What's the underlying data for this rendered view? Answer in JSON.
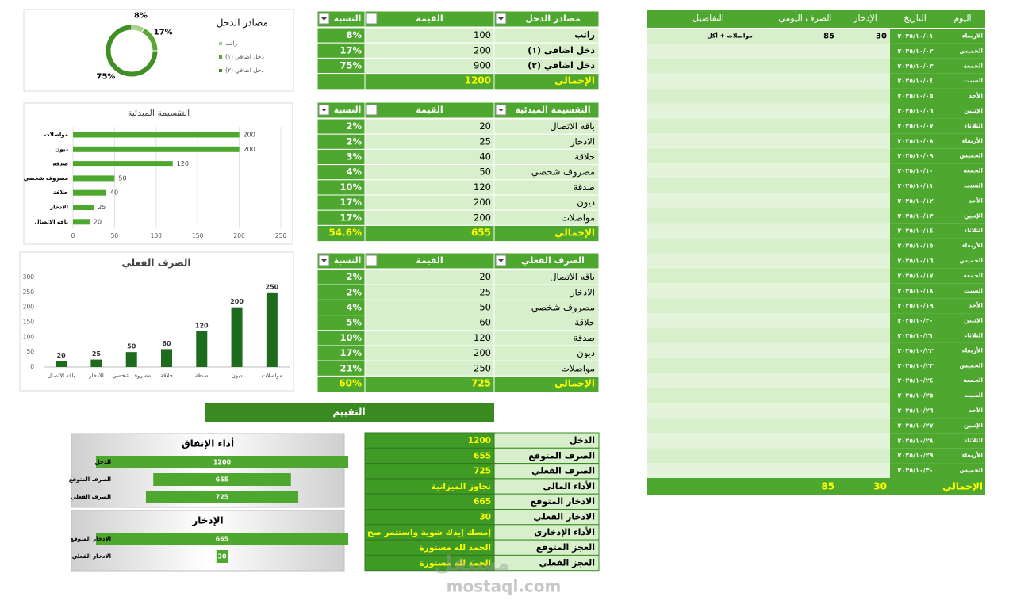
{
  "chart_data": [
    {
      "type": "donut",
      "title": "مصادر الدخل",
      "categories": [
        "راتب",
        "دخل اضافي (١)",
        "دخل اضافي (٢)"
      ],
      "values": [
        8,
        17,
        75
      ],
      "value_labels": [
        "8%",
        "17%",
        "75%"
      ],
      "colors": [
        "#a9d18e",
        "#5aa832",
        "#3f8f25"
      ],
      "legend": "right"
    },
    {
      "type": "hbar",
      "title": "التقسيمة المبدئية",
      "categories": [
        "مواصلات",
        "ديون",
        "صدقة",
        "مصروف شخصي",
        "حلاقة",
        "الادخار",
        "باقه الاتصال"
      ],
      "values": [
        200,
        200,
        120,
        50,
        40,
        25,
        20
      ],
      "color": "#4ea72e",
      "xlim": [
        0,
        250
      ],
      "xticks": [
        0,
        50,
        100,
        150,
        200,
        250
      ],
      "grid": true
    },
    {
      "type": "bar",
      "title": "الصرف الفعلي",
      "categories": [
        "باقه الاتصال",
        "الادخار",
        "مصروف شخصي",
        "حلاقة",
        "صدقة",
        "ديون",
        "مواصلات"
      ],
      "values": [
        20,
        25,
        50,
        60,
        120,
        200,
        250
      ],
      "color": "#1e6b1e",
      "ylim": [
        0,
        300
      ],
      "yticks": [
        0,
        50,
        100,
        150,
        200,
        250,
        300
      ],
      "grid": false
    },
    {
      "type": "funnel",
      "title": "أداء الإنفاق",
      "categories": [
        "الدخل",
        "الصرف المتوقع",
        "الصرف الفعلي"
      ],
      "values": [
        1200,
        655,
        725
      ],
      "color": "#4ea72e"
    },
    {
      "type": "funnel",
      "title": "الإدخار",
      "categories": [
        "الادخار المتوقع",
        "الادخار الفعلي"
      ],
      "values": [
        665,
        30
      ],
      "color": "#4ea72e"
    }
  ],
  "tables": {
    "income": {
      "headers": [
        "مصادر الدخل",
        "القيمة",
        "النسبة"
      ],
      "rows": [
        [
          "راتب",
          100,
          "8%"
        ],
        [
          "دخل اضافي (١)",
          200,
          "17%"
        ],
        [
          "دخل اضافي (٢)",
          900,
          "75%"
        ]
      ],
      "total": [
        "الإجمالي",
        1200
      ]
    },
    "budget": {
      "headers": [
        "التقسيمة المبدئية",
        "القيمة",
        "النسبة"
      ],
      "rows": [
        [
          "باقه الاتصال",
          20,
          "2%"
        ],
        [
          "الادخار",
          25,
          "2%"
        ],
        [
          "حلاقة",
          40,
          "3%"
        ],
        [
          "مصروف شخصي",
          50,
          "4%"
        ],
        [
          "صدقة",
          120,
          "10%"
        ],
        [
          "ديون",
          200,
          "17%"
        ],
        [
          "مواصلات",
          200,
          "17%"
        ]
      ],
      "total": [
        "الإجمالي",
        655,
        "54.6%"
      ]
    },
    "actual": {
      "headers": [
        "الصرف الفعلي",
        "القيمة",
        "النسبة"
      ],
      "rows": [
        [
          "باقه الاتصال",
          20,
          "2%"
        ],
        [
          "الادخار",
          25,
          "2%"
        ],
        [
          "مصروف شخصي",
          50,
          "4%"
        ],
        [
          "حلاقة",
          60,
          "5%"
        ],
        [
          "صدقة",
          120,
          "10%"
        ],
        [
          "ديون",
          200,
          "17%"
        ],
        [
          "مواصلات",
          250,
          "21%"
        ]
      ],
      "total": [
        "الإجمالي",
        725,
        "60%"
      ]
    }
  },
  "evaluation": {
    "title": "التقييم",
    "rows": [
      [
        "الدخل",
        1200
      ],
      [
        "الصرف المتوقع",
        655
      ],
      [
        "الصرف الفعلي",
        725
      ],
      [
        "الأداء المالي",
        "تجاوز الميزانية"
      ],
      [
        "الادخار المتوقع",
        665
      ],
      [
        "الادخار الفعلي",
        30
      ],
      [
        "الأداء الإدخاري",
        "إمسك إيدك شوية واستثمر صح"
      ],
      [
        "العجز المتوقع",
        "الحمد لله مستورة"
      ],
      [
        "العجز الفعلي",
        "الحمد لله مستورة"
      ]
    ]
  },
  "daily": {
    "headers": [
      "اليوم",
      "التاريخ",
      "الإدخار",
      "الصرف اليومي",
      "التفاصيل"
    ],
    "rows": [
      {
        "day": "الاربعاء",
        "date": "٢٠٢٥/١٠/٠١",
        "saving": 30,
        "spend": 85,
        "details": "مواصلات + أكل"
      },
      {
        "day": "الخميس",
        "date": "٢٠٢٥/١٠/٠٢"
      },
      {
        "day": "الجمعة",
        "date": "٢٠٢٥/١٠/٠٣"
      },
      {
        "day": "السبت",
        "date": "٢٠٢٥/١٠/٠٤"
      },
      {
        "day": "الأحد",
        "date": "٢٠٢٥/١٠/٠٥"
      },
      {
        "day": "الإتنين",
        "date": "٢٠٢٥/١٠/٠٦"
      },
      {
        "day": "الثلاثاء",
        "date": "٢٠٢٥/١٠/٠٧"
      },
      {
        "day": "الأربعاء",
        "date": "٢٠٢٥/١٠/٠٨"
      },
      {
        "day": "الخميس",
        "date": "٢٠٢٥/١٠/٠٩"
      },
      {
        "day": "الجمعة",
        "date": "٢٠٢٥/١٠/١٠"
      },
      {
        "day": "السبت",
        "date": "٢٠٢٥/١٠/١١"
      },
      {
        "day": "الأحد",
        "date": "٢٠٢٥/١٠/١٢"
      },
      {
        "day": "الإتنين",
        "date": "٢٠٢٥/١٠/١٣"
      },
      {
        "day": "الثلاثاء",
        "date": "٢٠٢٥/١٠/١٤"
      },
      {
        "day": "الأربعاء",
        "date": "٢٠٢٥/١٠/١٥"
      },
      {
        "day": "الخميس",
        "date": "٢٠٢٥/١٠/١٦"
      },
      {
        "day": "الجمعة",
        "date": "٢٠٢٥/١٠/١٧"
      },
      {
        "day": "السبت",
        "date": "٢٠٢٥/١٠/١٨"
      },
      {
        "day": "الأحد",
        "date": "٢٠٢٥/١٠/١٩"
      },
      {
        "day": "الإتنين",
        "date": "٢٠٢٥/١٠/٢٠"
      },
      {
        "day": "الثلاثاء",
        "date": "٢٠٢٥/١٠/٢١"
      },
      {
        "day": "الأربعاء",
        "date": "٢٠٢٥/١٠/٢٢"
      },
      {
        "day": "الخميس",
        "date": "٢٠٢٥/١٠/٢٣"
      },
      {
        "day": "الجمعة",
        "date": "٢٠٢٥/١٠/٢٤"
      },
      {
        "day": "السبت",
        "date": "٢٠٢٥/١٠/٢٥"
      },
      {
        "day": "الأحد",
        "date": "٢٠٢٥/١٠/٢٦"
      },
      {
        "day": "الإتنين",
        "date": "٢٠٢٥/١٠/٢٧"
      },
      {
        "day": "الثلاثاء",
        "date": "٢٠٢٥/١٠/٢٨"
      },
      {
        "day": "الأربعاء",
        "date": "٢٠٢٥/١٠/٢٩"
      },
      {
        "day": "الخميس",
        "date": "٢٠٢٥/١٠/٣٠"
      }
    ],
    "total": {
      "label": "الإجمالي",
      "saving": 30,
      "spend": 85
    }
  },
  "watermark": {
    "logo": "مستقل",
    "site": "mostaql.com"
  }
}
